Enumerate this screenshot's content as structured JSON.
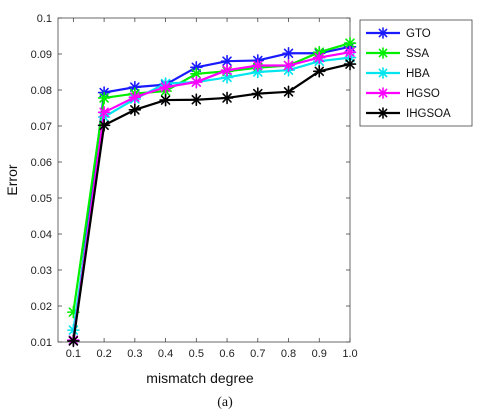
{
  "caption": "(a)",
  "chart_data": {
    "type": "line",
    "xlabel": "mismatch degree",
    "ylabel": "Error",
    "x": [
      0.1,
      0.2,
      0.3,
      0.4,
      0.5,
      0.6,
      0.7,
      0.8,
      0.9,
      1.0
    ],
    "x_tick_labels": [
      "0.1",
      "0.2",
      "0.3",
      "0.4",
      "0.5",
      "0.6",
      "0.7",
      "0.8",
      "0.9",
      "1.0"
    ],
    "y_tick_labels": [
      "0.01",
      "0.02",
      "0.03",
      "0.04",
      "0.05",
      "0.06",
      "0.07",
      "0.08",
      "0.09",
      "0.1"
    ],
    "xlim": [
      0.05,
      1.0
    ],
    "ylim": [
      0.01,
      0.1
    ],
    "grid": false,
    "legend_position": "right-top outside",
    "series": [
      {
        "name": "GTO",
        "color": "#1a1aff",
        "values": [
          0.0105,
          0.0793,
          0.0808,
          0.0815,
          0.0863,
          0.088,
          0.0882,
          0.0902,
          0.0902,
          0.092
        ]
      },
      {
        "name": "SSA",
        "color": "#00ee00",
        "values": [
          0.0183,
          0.0778,
          0.079,
          0.0797,
          0.0845,
          0.0852,
          0.0862,
          0.0868,
          0.0905,
          0.093
        ]
      },
      {
        "name": "HBA",
        "color": "#00e5ee",
        "values": [
          0.0133,
          0.0725,
          0.0775,
          0.0818,
          0.0822,
          0.0835,
          0.085,
          0.0855,
          0.088,
          0.089
        ]
      },
      {
        "name": "HGSO",
        "color": "#ff00ff",
        "values": [
          0.0105,
          0.0738,
          0.078,
          0.0808,
          0.0822,
          0.0855,
          0.0868,
          0.0868,
          0.089,
          0.0905
        ]
      },
      {
        "name": "IHGSOA",
        "color": "#000000",
        "values": [
          0.0103,
          0.0702,
          0.0745,
          0.0772,
          0.0773,
          0.0778,
          0.079,
          0.0795,
          0.0852,
          0.0872
        ]
      }
    ]
  }
}
